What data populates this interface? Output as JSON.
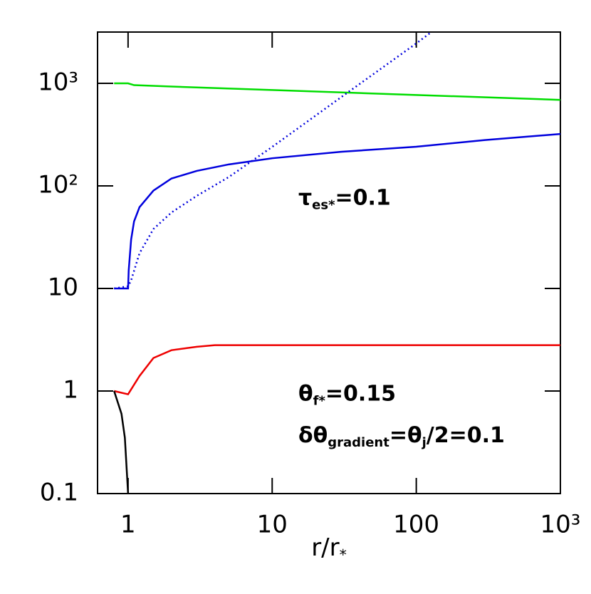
{
  "chart_data": {
    "type": "line",
    "xscale": "log",
    "yscale": "log",
    "xlim": [
      0.614,
      1000
    ],
    "ylim": [
      0.1,
      3162
    ],
    "xticks": [
      1,
      10,
      100,
      {
        "value": 1000,
        "label": "10³"
      }
    ],
    "yticks": [
      0.1,
      1,
      10,
      {
        "value": 100,
        "label": "10²"
      },
      {
        "value": 1000,
        "label": "10³"
      }
    ],
    "xlabel": [
      {
        "text": "r/r"
      },
      {
        "text": "*",
        "sub": true
      }
    ],
    "annotations": [
      {
        "x": 0.75,
        "y": 0.36,
        "parts": [
          {
            "text": "τ"
          },
          {
            "text": "es*",
            "sub": true
          },
          {
            "text": "=0.1"
          }
        ]
      },
      {
        "x": 0.75,
        "y": 0.785,
        "parts": [
          {
            "text": "θ"
          },
          {
            "text": "f*",
            "sub": true
          },
          {
            "text": "=0.15"
          }
        ]
      },
      {
        "x": 0.75,
        "y": 0.875,
        "parts": [
          {
            "text": "δθ"
          },
          {
            "text": "gradient",
            "sub": true
          },
          {
            "text": "=θ"
          },
          {
            "text": "j",
            "sub": true
          },
          {
            "text": "/2=0.1"
          }
        ]
      }
    ],
    "series": [
      {
        "color": "#00dd00",
        "style": "solid",
        "x": [
          0.8,
          1.0,
          1.1,
          2,
          10,
          100,
          1000
        ],
        "values": [
          1000,
          1000,
          960,
          930,
          860,
          770,
          690
        ]
      },
      {
        "color": "#0000dd",
        "style": "solid",
        "x": [
          0.8,
          1.0,
          1.01,
          1.05,
          1.1,
          1.2,
          1.5,
          2,
          3,
          5,
          10,
          30,
          100,
          300,
          1000
        ],
        "values": [
          10,
          10,
          15,
          30,
          45,
          62,
          90,
          118,
          140,
          162,
          186,
          215,
          241,
          280,
          321
        ]
      },
      {
        "color": "#0000dd",
        "style": "dotted",
        "x": [
          0.8,
          1.0,
          1.05,
          1.2,
          1.5,
          2,
          3,
          5,
          10,
          30,
          100,
          125
        ],
        "values": [
          10,
          10.5,
          12,
          22,
          38,
          55,
          80,
          122,
          240,
          730,
          2450,
          3100
        ]
      },
      {
        "color": "#ee0000",
        "style": "solid",
        "x": [
          0.8,
          1.0,
          1.2,
          1.5,
          2,
          3,
          4,
          10,
          1000
        ],
        "values": [
          1,
          0.93,
          1.4,
          2.1,
          2.5,
          2.7,
          2.8,
          2.8,
          2.8
        ]
      },
      {
        "color": "#000000",
        "style": "solid",
        "x": [
          0.8,
          0.9,
          0.95,
          1.0
        ],
        "values": [
          1,
          0.6,
          0.35,
          0.1
        ]
      }
    ]
  }
}
